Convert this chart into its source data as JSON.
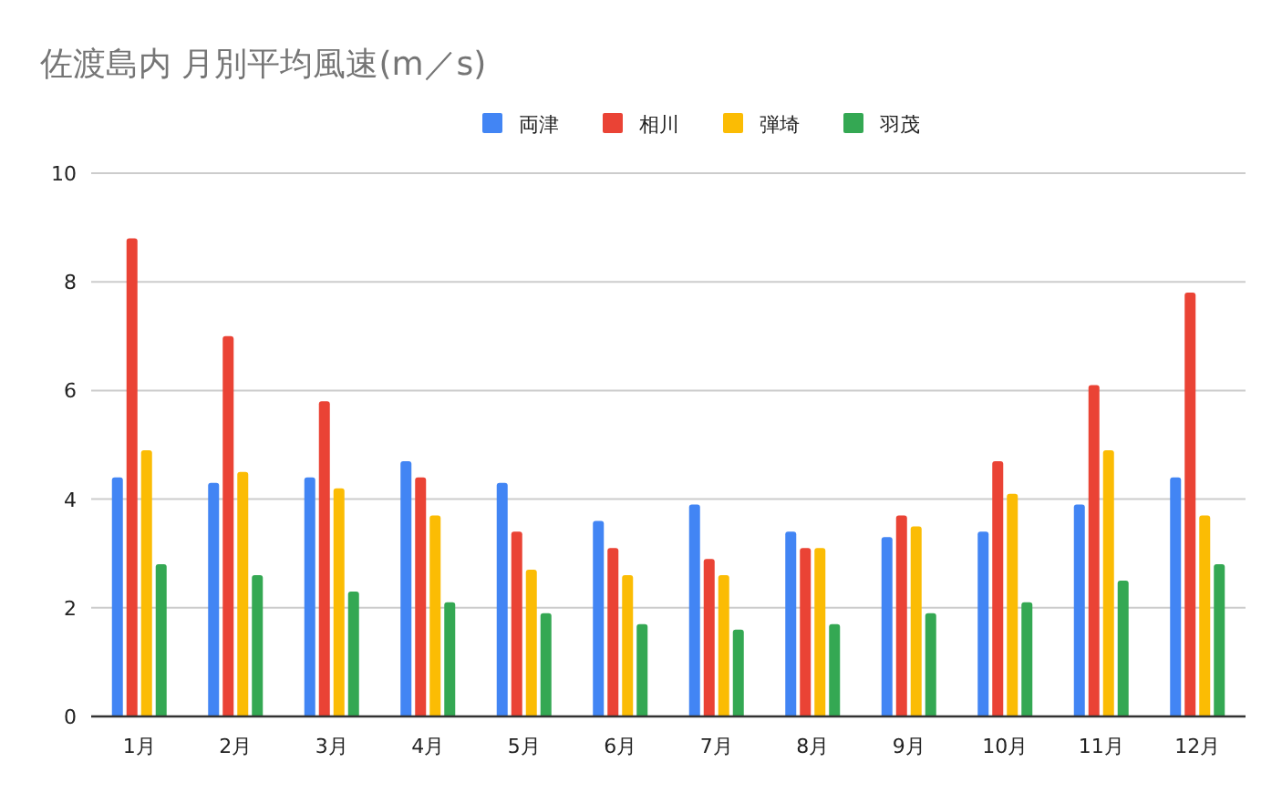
{
  "chart_data": {
    "type": "bar",
    "title": "佐渡島内 月別平均風速(m／s)",
    "categories": [
      "1月",
      "2月",
      "3月",
      "4月",
      "5月",
      "6月",
      "7月",
      "8月",
      "9月",
      "10月",
      "11月",
      "12月"
    ],
    "series": [
      {
        "name": "両津",
        "color": "#4285f4",
        "values": [
          4.4,
          4.3,
          4.4,
          4.7,
          4.3,
          3.6,
          3.9,
          3.4,
          3.3,
          3.4,
          3.9,
          4.4
        ]
      },
      {
        "name": "相川",
        "color": "#ea4335",
        "values": [
          8.8,
          7.0,
          5.8,
          4.4,
          3.4,
          3.1,
          2.9,
          3.1,
          3.7,
          4.7,
          6.1,
          7.8
        ]
      },
      {
        "name": "弾埼",
        "color": "#fbbc04",
        "values": [
          4.9,
          4.5,
          4.2,
          3.7,
          2.7,
          2.6,
          2.6,
          3.1,
          3.5,
          4.1,
          4.9,
          3.7
        ]
      },
      {
        "name": "羽茂",
        "color": "#34a853",
        "values": [
          2.8,
          2.6,
          2.3,
          2.1,
          1.9,
          1.7,
          1.6,
          1.7,
          1.9,
          2.1,
          2.5,
          2.8
        ]
      }
    ],
    "ylim": [
      0,
      10
    ],
    "yticks": [
      0,
      2,
      4,
      6,
      8,
      10
    ],
    "grid": "y",
    "legend": "top"
  }
}
